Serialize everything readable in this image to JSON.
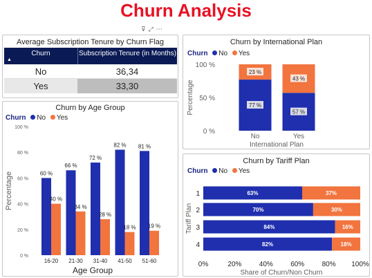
{
  "page": {
    "title": "Churn Analysis"
  },
  "icons": {
    "filter": "filter-icon",
    "focus": "focus-mode-icon",
    "more": "more-options-icon"
  },
  "colors": {
    "no": "#1f2fae",
    "yes": "#f2743f",
    "header": "#0a1a54",
    "title": "#e81123"
  },
  "table": {
    "title": "Average Subscription Tenure by Churn Flag",
    "columns": [
      "Churn",
      "Subscription Tenure (in Months)"
    ],
    "rows": [
      {
        "churn": "No",
        "tenure": "36,34"
      },
      {
        "churn": "Yes",
        "tenure": "33,30"
      }
    ]
  },
  "legend": {
    "title": "Churn",
    "no": "No",
    "yes": "Yes"
  },
  "chart_data": [
    {
      "id": "international",
      "type": "bar",
      "stacked": "percent",
      "title": "Churn by International Plan",
      "xlabel": "International Plan",
      "ylabel": "Percentage",
      "categories": [
        "No",
        "Yes"
      ],
      "yticks": [
        "0 %",
        "50 %",
        "100 %"
      ],
      "series": [
        {
          "name": "No",
          "values": [
            77,
            57
          ],
          "labels": [
            "77 %",
            "57 %"
          ]
        },
        {
          "name": "Yes",
          "values": [
            23,
            43
          ],
          "labels": [
            "23 %",
            "43 %"
          ]
        }
      ],
      "ylim": [
        0,
        100
      ]
    },
    {
      "id": "age",
      "type": "bar",
      "title": "Churn by Age Group",
      "xlabel": "Age Group",
      "ylabel": "Percentage",
      "categories": [
        "16-20",
        "21-30",
        "31-40",
        "41-50",
        "51-60"
      ],
      "yticks": [
        "0 %",
        "20 %",
        "40 %",
        "60 %",
        "80 %",
        "100 %"
      ],
      "series": [
        {
          "name": "No",
          "values": [
            60,
            66,
            72,
            82,
            81
          ],
          "labels": [
            "60 %",
            "66 %",
            "72 %",
            "82 %",
            "81 %"
          ]
        },
        {
          "name": "Yes",
          "values": [
            40,
            34,
            28,
            18,
            19
          ],
          "labels": [
            "40 %",
            "34 %",
            "28 %",
            "18 %",
            "19 %"
          ]
        }
      ],
      "ylim": [
        0,
        100
      ]
    },
    {
      "id": "tariff",
      "type": "bar",
      "orientation": "horizontal",
      "stacked": "percent",
      "title": "Churn by Tariff Plan",
      "xlabel": "Share of Churn/Non Churn",
      "ylabel": "Tariff Plan",
      "categories": [
        "1",
        "2",
        "3",
        "4"
      ],
      "xticks": [
        "0%",
        "20%",
        "40%",
        "60%",
        "80%",
        "100%"
      ],
      "series": [
        {
          "name": "No",
          "values": [
            63,
            70,
            84,
            82
          ],
          "labels": [
            "63%",
            "70%",
            "84%",
            "82%"
          ]
        },
        {
          "name": "Yes",
          "values": [
            37,
            30,
            16,
            18
          ],
          "labels": [
            "37%",
            "30%",
            "16%",
            "18%"
          ]
        }
      ],
      "xlim": [
        0,
        100
      ]
    }
  ]
}
